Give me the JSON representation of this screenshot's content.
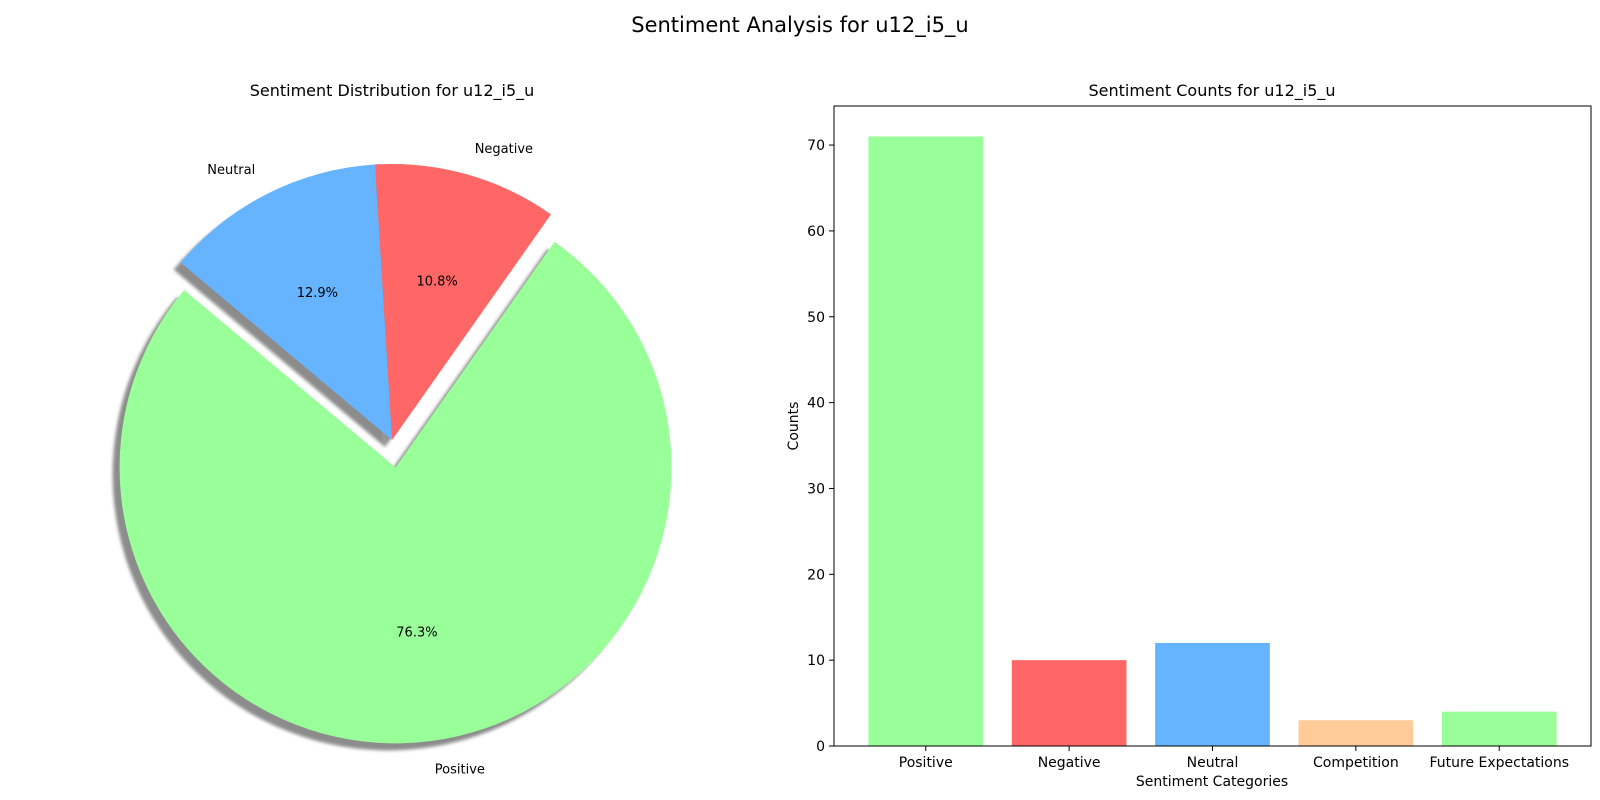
{
  "figure": {
    "title": "Sentiment Analysis for u12_i5_u"
  },
  "chart_data": [
    {
      "type": "pie",
      "title": "Sentiment Distribution for u12_i5_u",
      "labels": [
        "Positive",
        "Negative",
        "Neutral"
      ],
      "values": [
        71,
        10,
        12
      ],
      "percent_labels": [
        "76.3%",
        "10.8%",
        "12.9%"
      ],
      "colors": [
        "#99ff99",
        "#ff6666",
        "#66b3ff"
      ],
      "exploded": [
        "Positive"
      ],
      "shadow": true
    },
    {
      "type": "bar",
      "title": "Sentiment Counts for u12_i5_u",
      "xlabel": "Sentiment Categories",
      "ylabel": "Counts",
      "categories": [
        "Positive",
        "Negative",
        "Neutral",
        "Competition",
        "Future Expectations"
      ],
      "values": [
        71,
        10,
        12,
        3,
        4
      ],
      "colors": [
        "#99ff99",
        "#ff6666",
        "#66b3ff",
        "#ffcc99",
        "#99ff99"
      ],
      "ylim": [
        0,
        74.55
      ],
      "yticks": [
        0,
        10,
        20,
        30,
        40,
        50,
        60,
        70
      ],
      "grid": false
    }
  ]
}
